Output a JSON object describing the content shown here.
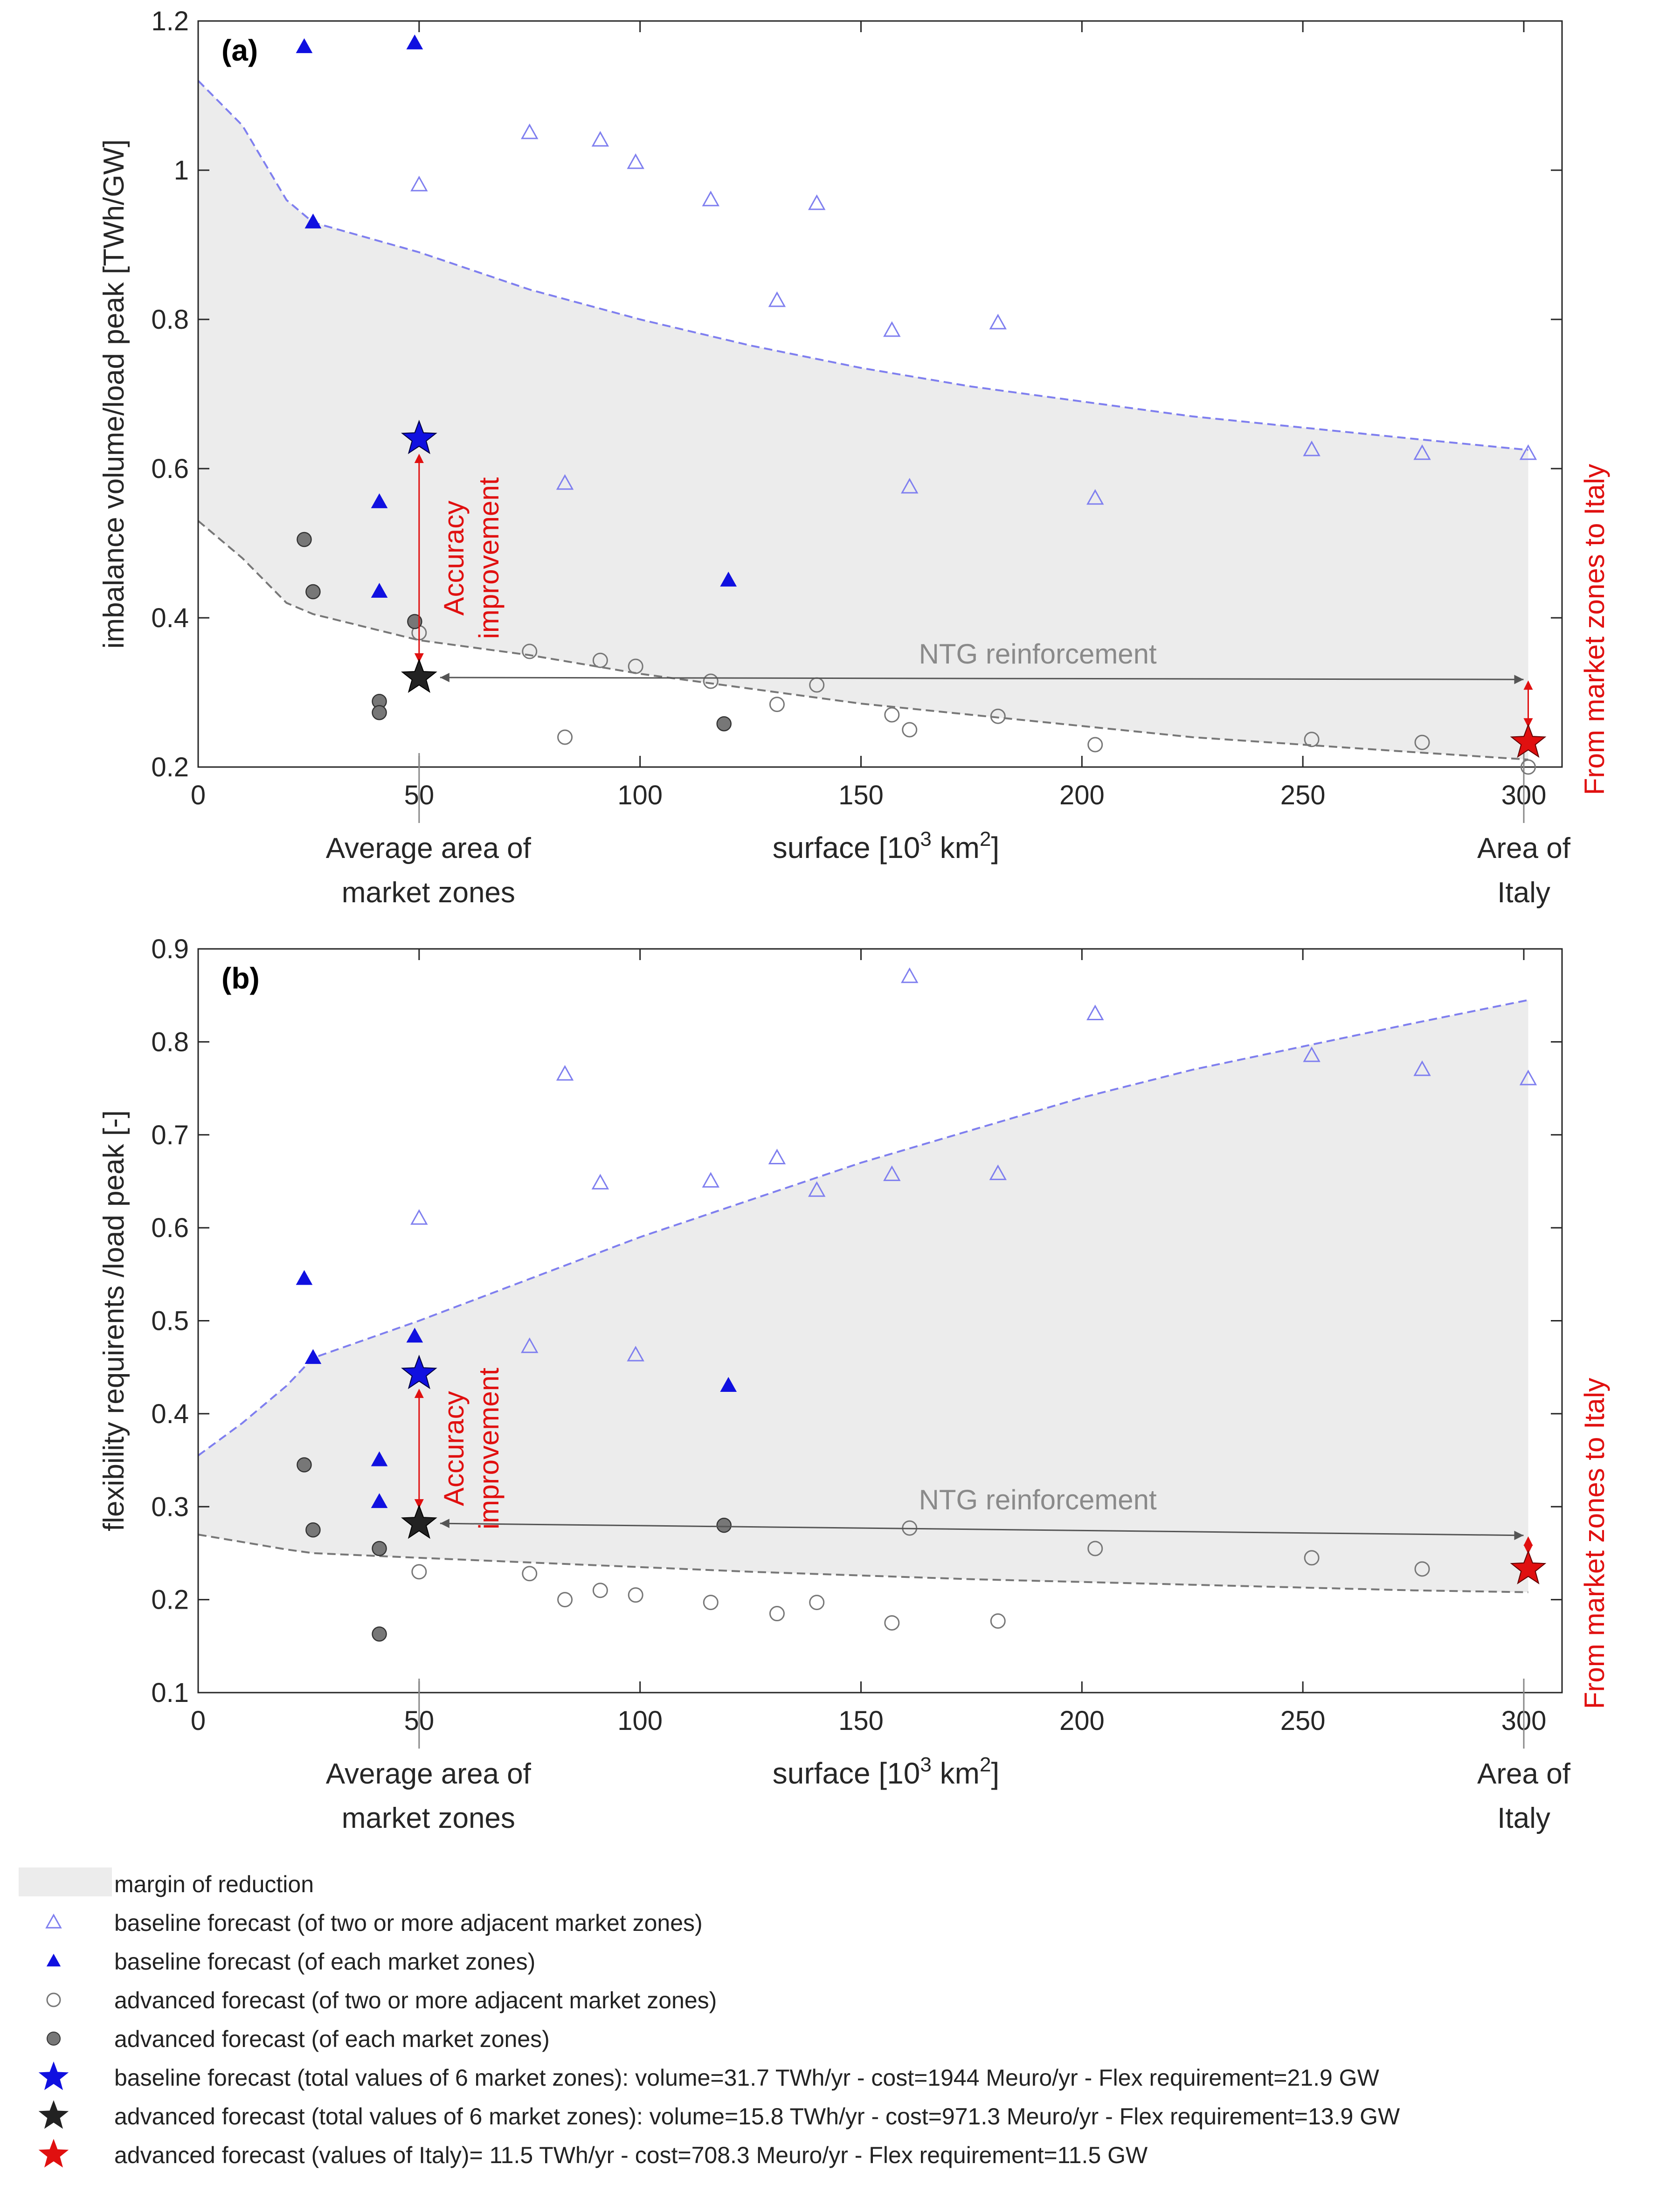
{
  "chart_data": [
    {
      "type": "scatter",
      "panel_label": "(a)",
      "xlabel": "surface [10",
      "xlabel_sup": "3",
      "xlabel_unit": " km",
      "xlabel_sup2": "2",
      "xlabel_end": "]",
      "ylabel": "imbalance volume/load peak [TWh/GW]",
      "xlim": [
        0,
        310
      ],
      "ylim": [
        0.2,
        1.2
      ],
      "xticks": [
        0,
        50,
        100,
        150,
        200,
        250,
        300
      ],
      "xtick_labels": [
        "0",
        "50",
        "100",
        "150",
        "200",
        "250",
        "300"
      ],
      "yticks": [
        0.2,
        0.4,
        0.6,
        0.8,
        1.0,
        1.2
      ],
      "ytick_labels": [
        "0.2",
        "0.4",
        "0.6",
        "0.8",
        "1",
        "1.2"
      ],
      "x_annotation_left": [
        "Average area of",
        "market zones"
      ],
      "x_annotation_right": [
        "Area of",
        "Italy"
      ],
      "accuracy_label": [
        "Accuracy",
        "improvement"
      ],
      "ntg_label": "NTG reinforcement",
      "italy_label": "From market zones  to Italy",
      "series": [
        {
          "name": "baseline_adjacent",
          "points": [
            [
              50,
              0.98
            ],
            [
              75,
              1.05
            ],
            [
              91,
              1.04
            ],
            [
              99,
              1.01
            ],
            [
              116,
              0.96
            ],
            [
              140,
              0.955
            ],
            [
              131,
              0.825
            ],
            [
              157,
              0.785
            ],
            [
              181,
              0.795
            ],
            [
              83,
              0.58
            ],
            [
              161,
              0.575
            ],
            [
              203,
              0.56
            ],
            [
              252,
              0.625
            ],
            [
              277,
              0.62
            ],
            [
              301,
              0.62
            ]
          ]
        },
        {
          "name": "baseline_each",
          "points": [
            [
              24,
              1.165
            ],
            [
              49,
              1.17
            ],
            [
              26,
              0.93
            ],
            [
              41,
              0.555
            ],
            [
              41,
              0.435
            ],
            [
              120,
              0.45
            ]
          ]
        },
        {
          "name": "advanced_adjacent",
          "points": [
            [
              50,
              0.38
            ],
            [
              75,
              0.355
            ],
            [
              91,
              0.343
            ],
            [
              99,
              0.335
            ],
            [
              116,
              0.315
            ],
            [
              140,
              0.31
            ],
            [
              131,
              0.284
            ],
            [
              157,
              0.27
            ],
            [
              161,
              0.25
            ],
            [
              181,
              0.268
            ],
            [
              83,
              0.24
            ],
            [
              203,
              0.23
            ],
            [
              252,
              0.237
            ],
            [
              277,
              0.233
            ],
            [
              301,
              0.2
            ]
          ]
        },
        {
          "name": "advanced_each",
          "points": [
            [
              24,
              0.505
            ],
            [
              26,
              0.435
            ],
            [
              49,
              0.395
            ],
            [
              41,
              0.288
            ],
            [
              41,
              0.273
            ],
            [
              119,
              0.258
            ]
          ]
        }
      ],
      "stars": {
        "baseline_total": [
          50,
          0.64
        ],
        "advanced_total": [
          50,
          0.32
        ],
        "italy": [
          301,
          0.233
        ]
      },
      "upper_boundary": [
        [
          0,
          1.12
        ],
        [
          10,
          1.06
        ],
        [
          20,
          0.96
        ],
        [
          26,
          0.93
        ],
        [
          50,
          0.89
        ],
        [
          75,
          0.84
        ],
        [
          100,
          0.8
        ],
        [
          125,
          0.765
        ],
        [
          150,
          0.735
        ],
        [
          175,
          0.71
        ],
        [
          200,
          0.69
        ],
        [
          225,
          0.67
        ],
        [
          250,
          0.655
        ],
        [
          275,
          0.64
        ],
        [
          301,
          0.625
        ]
      ],
      "lower_boundary": [
        [
          0,
          0.53
        ],
        [
          10,
          0.48
        ],
        [
          20,
          0.42
        ],
        [
          26,
          0.405
        ],
        [
          50,
          0.37
        ],
        [
          75,
          0.35
        ],
        [
          100,
          0.325
        ],
        [
          125,
          0.305
        ],
        [
          150,
          0.285
        ],
        [
          175,
          0.27
        ],
        [
          200,
          0.255
        ],
        [
          225,
          0.24
        ],
        [
          250,
          0.23
        ],
        [
          275,
          0.22
        ],
        [
          301,
          0.21
        ]
      ]
    },
    {
      "type": "scatter",
      "panel_label": "(b)",
      "xlabel": "surface [10",
      "xlabel_sup": "3",
      "xlabel_unit": " km",
      "xlabel_sup2": "2",
      "xlabel_end": "]",
      "ylabel": "flexibility requirents /load peak [-]",
      "xlim": [
        0,
        310
      ],
      "ylim": [
        0.1,
        0.9
      ],
      "xticks": [
        0,
        50,
        100,
        150,
        200,
        250,
        300
      ],
      "xtick_labels": [
        "0",
        "50",
        "100",
        "150",
        "200",
        "250",
        "300"
      ],
      "yticks": [
        0.1,
        0.2,
        0.3,
        0.4,
        0.5,
        0.6,
        0.7,
        0.8,
        0.9
      ],
      "ytick_labels": [
        "0.1",
        "0.2",
        "0.3",
        "0.4",
        "0.5",
        "0.6",
        "0.7",
        "0.8",
        "0.9"
      ],
      "x_annotation_left": [
        "Average area of",
        "market zones"
      ],
      "x_annotation_right": [
        "Area of",
        "Italy"
      ],
      "accuracy_label": [
        "Accuracy",
        "improvement"
      ],
      "ntg_label": "NTG reinforcement",
      "italy_label": "From market zones  to Italy",
      "series": [
        {
          "name": "baseline_adjacent",
          "points": [
            [
              161,
              0.87
            ],
            [
              203,
              0.83
            ],
            [
              83,
              0.765
            ],
            [
              252,
              0.785
            ],
            [
              277,
              0.77
            ],
            [
              301,
              0.76
            ],
            [
              131,
              0.675
            ],
            [
              91,
              0.648
            ],
            [
              116,
              0.65
            ],
            [
              140,
              0.64
            ],
            [
              157,
              0.657
            ],
            [
              181,
              0.658
            ],
            [
              50,
              0.61
            ],
            [
              75,
              0.472
            ],
            [
              99,
              0.463
            ]
          ]
        },
        {
          "name": "baseline_each",
          "points": [
            [
              24,
              0.545
            ],
            [
              26,
              0.46
            ],
            [
              49,
              0.483
            ],
            [
              41,
              0.35
            ],
            [
              41,
              0.305
            ],
            [
              120,
              0.43
            ]
          ]
        },
        {
          "name": "advanced_adjacent",
          "points": [
            [
              161,
              0.277
            ],
            [
              203,
              0.255
            ],
            [
              252,
              0.245
            ],
            [
              277,
              0.233
            ],
            [
              50,
              0.23
            ],
            [
              75,
              0.228
            ],
            [
              83,
              0.2
            ],
            [
              91,
              0.21
            ],
            [
              99,
              0.205
            ],
            [
              116,
              0.197
            ],
            [
              131,
              0.185
            ],
            [
              140,
              0.197
            ],
            [
              157,
              0.175
            ],
            [
              181,
              0.177
            ]
          ]
        },
        {
          "name": "advanced_each",
          "points": [
            [
              24,
              0.345
            ],
            [
              26,
              0.275
            ],
            [
              41,
              0.255
            ],
            [
              41,
              0.163
            ],
            [
              119,
              0.28
            ]
          ]
        }
      ],
      "stars": {
        "baseline_total": [
          50,
          0.443
        ],
        "advanced_total": [
          50,
          0.282
        ],
        "italy": [
          301,
          0.233
        ]
      },
      "upper_boundary": [
        [
          0,
          0.355
        ],
        [
          10,
          0.39
        ],
        [
          20,
          0.43
        ],
        [
          26,
          0.46
        ],
        [
          50,
          0.5
        ],
        [
          75,
          0.545
        ],
        [
          100,
          0.59
        ],
        [
          125,
          0.63
        ],
        [
          150,
          0.67
        ],
        [
          175,
          0.705
        ],
        [
          200,
          0.74
        ],
        [
          225,
          0.77
        ],
        [
          250,
          0.795
        ],
        [
          275,
          0.82
        ],
        [
          301,
          0.845
        ]
      ],
      "lower_boundary": [
        [
          0,
          0.27
        ],
        [
          10,
          0.262
        ],
        [
          20,
          0.254
        ],
        [
          26,
          0.25
        ],
        [
          50,
          0.245
        ],
        [
          75,
          0.24
        ],
        [
          100,
          0.235
        ],
        [
          125,
          0.23
        ],
        [
          150,
          0.226
        ],
        [
          175,
          0.222
        ],
        [
          200,
          0.219
        ],
        [
          225,
          0.216
        ],
        [
          250,
          0.213
        ],
        [
          275,
          0.21
        ],
        [
          301,
          0.208
        ]
      ]
    }
  ],
  "legend": {
    "items": [
      {
        "key": "margin",
        "label": "margin of reduction"
      },
      {
        "key": "baseline_adjacent",
        "label": "baseline forecast (of two or more adjacent market zones)"
      },
      {
        "key": "baseline_each",
        "label": "baseline forecast (of each market zones)"
      },
      {
        "key": "advanced_adjacent",
        "label": "advanced forecast (of two or more adjacent market zones)"
      },
      {
        "key": "advanced_each",
        "label": "advanced forecast (of each market zones)"
      },
      {
        "key": "baseline_total",
        "label": "baseline forecast (total values of 6 market zones): volume=31.7 TWh/yr - cost=1944 Meuro/yr - Flex requirement=21.9 GW"
      },
      {
        "key": "advanced_total",
        "label": "advanced forecast (total values of 6 market zones): volume=15.8 TWh/yr - cost=971.3 Meuro/yr - Flex requirement=13.9 GW"
      },
      {
        "key": "italy",
        "label": "advanced forecast (values of Italy)= 11.5 TWh/yr - cost=708.3 Meuro/yr - Flex requirement=11.5 GW"
      }
    ]
  },
  "colors": {
    "blue": "#1010e0",
    "light_blue": "#7f7fef",
    "gray": "#555555",
    "red": "#e01010",
    "shade": "#ececec",
    "axis": "#262626"
  }
}
